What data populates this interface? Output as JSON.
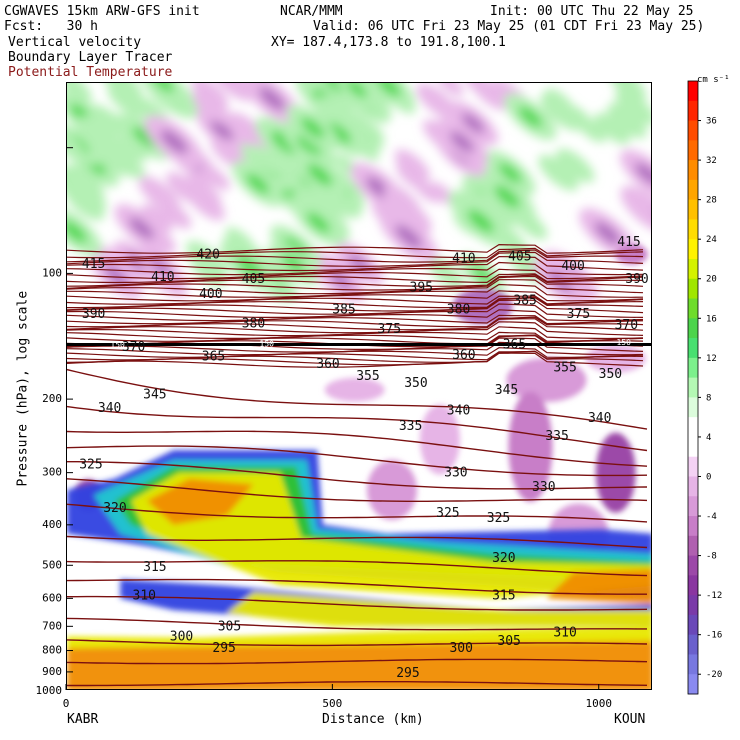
{
  "header": {
    "model": "CGWAVES 15km ARW-GFS init",
    "forecast": "Fcst:   30 h",
    "org": "NCAR/MMM",
    "init": "Init: 00 UTC Thu 22 May 25",
    "valid": "Valid: 06 UTC Fri 23 May 25 (01 CDT Fri 23 May 25)",
    "xy": "XY= 187.4,173.8 to 191.8,100.1",
    "fields": [
      {
        "label": "Vertical velocity",
        "color": "#000000"
      },
      {
        "label": "Boundary Layer Tracer",
        "color": "#000000"
      },
      {
        "label": "Potential Temperature",
        "color": "#8b1a1a"
      }
    ]
  },
  "chart_data": {
    "type": "heatmap",
    "ylabel": "Pressure (hPa), log scale",
    "xlabel": "Distance (km)",
    "x_start_label": "KABR",
    "x_end_label": "KOUN",
    "xlim": [
      0,
      1100
    ],
    "ylim": [
      1000,
      35
    ],
    "y_scale": "log",
    "x_ticks": [
      0,
      500,
      1000
    ],
    "y_ticks": [
      100,
      200,
      300,
      400,
      500,
      600,
      700,
      800,
      900,
      1000
    ],
    "colorbar": {
      "units": "cm s⁻¹",
      "tick_labels": [
        36,
        32,
        28,
        24,
        20,
        16,
        12,
        8,
        4,
        0,
        -4,
        -8,
        -12,
        -16,
        -20
      ],
      "colors": [
        "#ff0000",
        "#ff2600",
        "#ff4c00",
        "#ff6a00",
        "#ff8c00",
        "#ffa500",
        "#ffc000",
        "#ffdc00",
        "#fff200",
        "#d4f200",
        "#a0e600",
        "#6edc2c",
        "#4cd44c",
        "#48e070",
        "#7cf08c",
        "#b4f8b4",
        "#dcfcdc",
        "#ffffff",
        "#ffffff",
        "#f4d2f4",
        "#e6b4e6",
        "#d89ad8",
        "#c87ec8",
        "#b060b0",
        "#9c48a8",
        "#8a36a0",
        "#7a3aa8",
        "#6a48b8",
        "#6a60cc",
        "#7878e0",
        "#8a8af0"
      ]
    },
    "theta_labels": [
      {
        "v": 415,
        "x": 50,
        "p": 95
      },
      {
        "v": 420,
        "x": 265,
        "p": 90
      },
      {
        "v": 410,
        "x": 180,
        "p": 102
      },
      {
        "v": 405,
        "x": 350,
        "p": 103
      },
      {
        "v": 400,
        "x": 270,
        "p": 112
      },
      {
        "v": 390,
        "x": 50,
        "p": 125
      },
      {
        "v": 380,
        "x": 350,
        "p": 132
      },
      {
        "v": 385,
        "x": 520,
        "p": 122
      },
      {
        "v": 375,
        "x": 605,
        "p": 136
      },
      {
        "v": 395,
        "x": 665,
        "p": 108
      },
      {
        "v": 380,
        "x": 735,
        "p": 122
      },
      {
        "v": 410,
        "x": 745,
        "p": 92
      },
      {
        "v": 405,
        "x": 850,
        "p": 91
      },
      {
        "v": 385,
        "x": 860,
        "p": 116
      },
      {
        "v": 400,
        "x": 950,
        "p": 96
      },
      {
        "v": 375,
        "x": 960,
        "p": 125
      },
      {
        "v": 415,
        "x": 1055,
        "p": 84
      },
      {
        "v": 390,
        "x": 1070,
        "p": 103
      },
      {
        "v": 370,
        "x": 1050,
        "p": 133
      },
      {
        "v": 370,
        "x": 125,
        "p": 150
      },
      {
        "v": 365,
        "x": 275,
        "p": 158
      },
      {
        "v": 360,
        "x": 490,
        "p": 165
      },
      {
        "v": 360,
        "x": 745,
        "p": 157
      },
      {
        "v": 365,
        "x": 840,
        "p": 148
      },
      {
        "v": 355,
        "x": 565,
        "p": 176
      },
      {
        "v": 350,
        "x": 655,
        "p": 183
      },
      {
        "v": 345,
        "x": 825,
        "p": 190
      },
      {
        "v": 355,
        "x": 935,
        "p": 168
      },
      {
        "v": 350,
        "x": 1020,
        "p": 174
      },
      {
        "v": 345,
        "x": 165,
        "p": 195
      },
      {
        "v": 340,
        "x": 80,
        "p": 210
      },
      {
        "v": 335,
        "x": 645,
        "p": 232
      },
      {
        "v": 340,
        "x": 735,
        "p": 213
      },
      {
        "v": 335,
        "x": 920,
        "p": 245
      },
      {
        "v": 340,
        "x": 1000,
        "p": 222
      },
      {
        "v": 325,
        "x": 45,
        "p": 287
      },
      {
        "v": 330,
        "x": 730,
        "p": 300
      },
      {
        "v": 330,
        "x": 895,
        "p": 325
      },
      {
        "v": 325,
        "x": 715,
        "p": 375
      },
      {
        "v": 325,
        "x": 810,
        "p": 385
      },
      {
        "v": 320,
        "x": 90,
        "p": 365
      },
      {
        "v": 320,
        "x": 820,
        "p": 480
      },
      {
        "v": 315,
        "x": 165,
        "p": 505
      },
      {
        "v": 310,
        "x": 145,
        "p": 590
      },
      {
        "v": 315,
        "x": 820,
        "p": 590
      },
      {
        "v": 300,
        "x": 215,
        "p": 740
      },
      {
        "v": 305,
        "x": 305,
        "p": 700
      },
      {
        "v": 295,
        "x": 295,
        "p": 790
      },
      {
        "v": 300,
        "x": 740,
        "p": 790
      },
      {
        "v": 305,
        "x": 830,
        "p": 760
      },
      {
        "v": 310,
        "x": 935,
        "p": 725
      },
      {
        "v": 295,
        "x": 640,
        "p": 905
      }
    ],
    "tropopause_labels": [
      {
        "v": 150,
        "x": 95,
        "p": 148
      },
      {
        "v": 150,
        "x": 375,
        "p": 147
      },
      {
        "v": 150,
        "x": 1045,
        "p": 146
      }
    ],
    "grid": false,
    "legend": "right colorbar"
  }
}
